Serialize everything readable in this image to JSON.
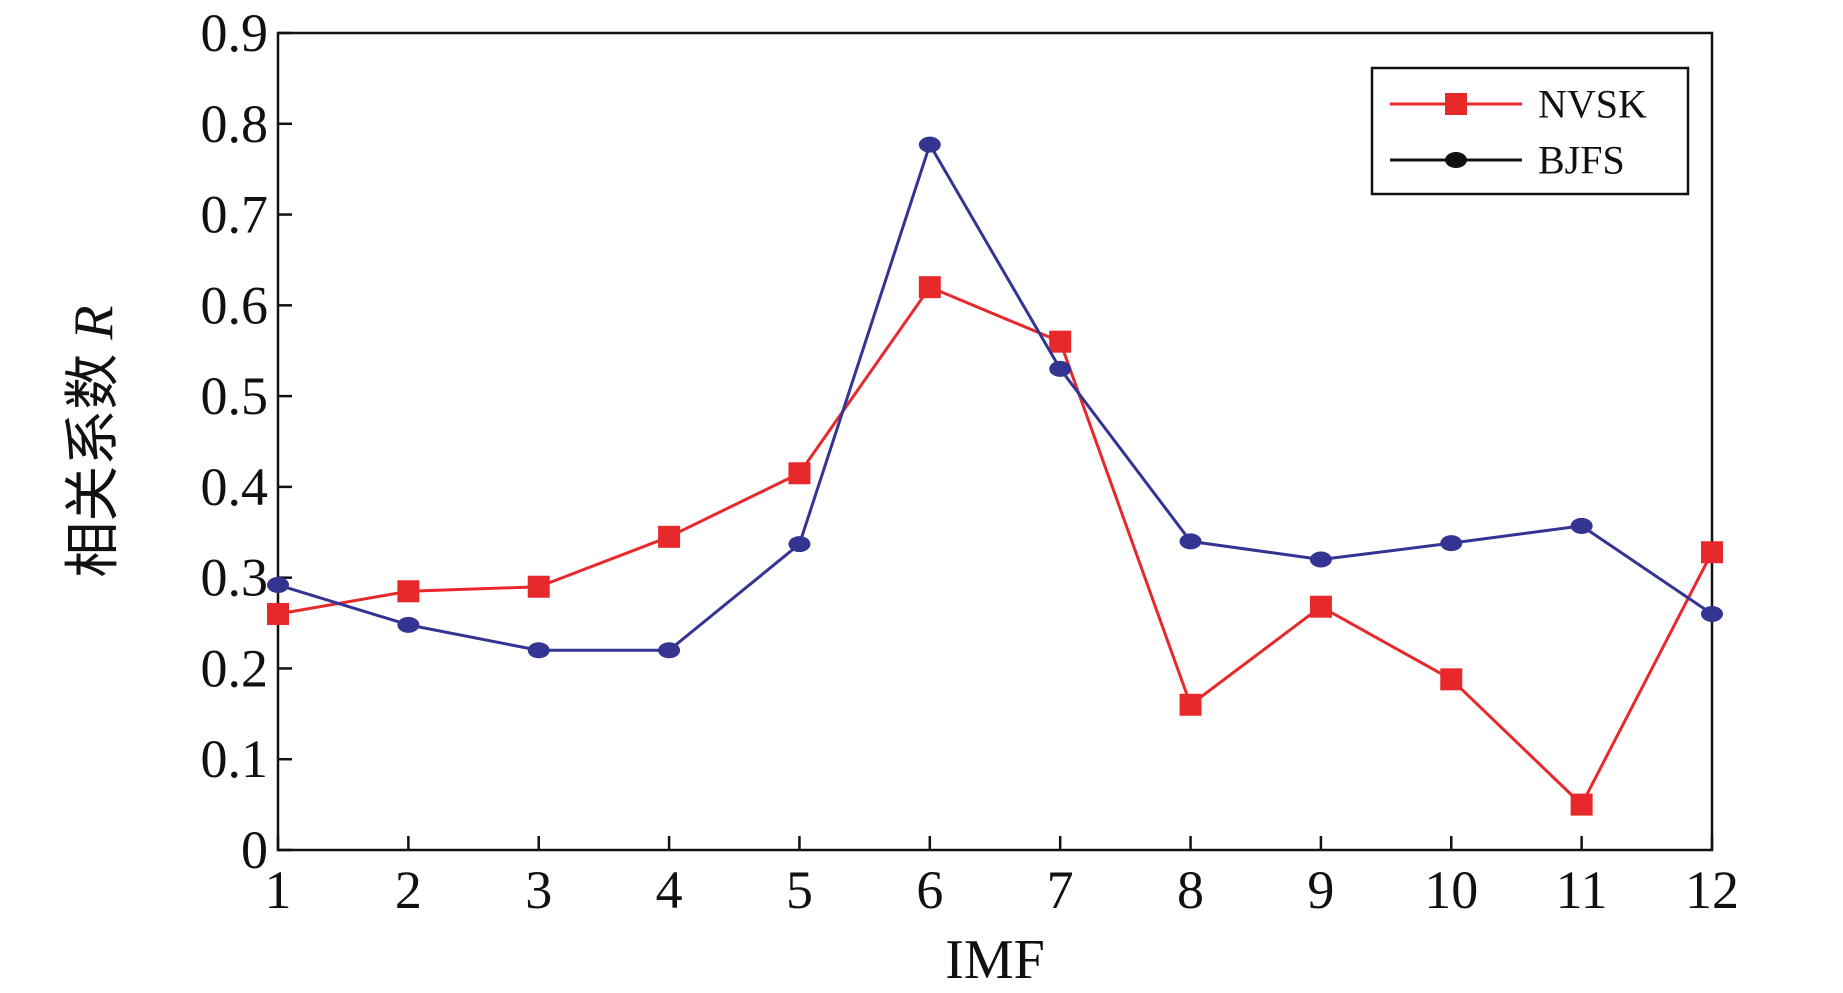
{
  "chart_data": {
    "type": "line",
    "title": "",
    "xlabel": "IMF",
    "ylabel": "相关系数 R",
    "ylabel_prefix": "相关系数",
    "ylabel_symbol": "R",
    "x": [
      1,
      2,
      3,
      4,
      5,
      6,
      7,
      8,
      9,
      10,
      11,
      12
    ],
    "xlim": [
      1,
      12
    ],
    "ylim": [
      0,
      0.9
    ],
    "xticks": [
      "1",
      "2",
      "3",
      "4",
      "5",
      "6",
      "7",
      "8",
      "9",
      "10",
      "11",
      "12"
    ],
    "yticks": [
      0,
      0.1,
      0.2,
      0.3,
      0.4,
      0.5,
      0.6,
      0.7,
      0.8,
      0.9
    ],
    "ytick_labels": [
      "0",
      "0.1",
      "0.2",
      "0.3",
      "0.4",
      "0.5",
      "0.6",
      "0.7",
      "0.8",
      "0.9"
    ],
    "grid": false,
    "legend_position": "top-right",
    "series": [
      {
        "name": "NVSK",
        "marker": "square",
        "color": "#e8292c",
        "legend_color": "#e8292c",
        "values": [
          0.26,
          0.285,
          0.29,
          0.345,
          0.415,
          0.62,
          0.56,
          0.16,
          0.268,
          0.188,
          0.05,
          0.328
        ]
      },
      {
        "name": "BJFS",
        "marker": "circle",
        "color": "#343492",
        "legend_color": "#111111",
        "values": [
          0.292,
          0.248,
          0.22,
          0.22,
          0.337,
          0.777,
          0.53,
          0.34,
          0.32,
          0.338,
          0.357,
          0.26
        ]
      }
    ]
  }
}
